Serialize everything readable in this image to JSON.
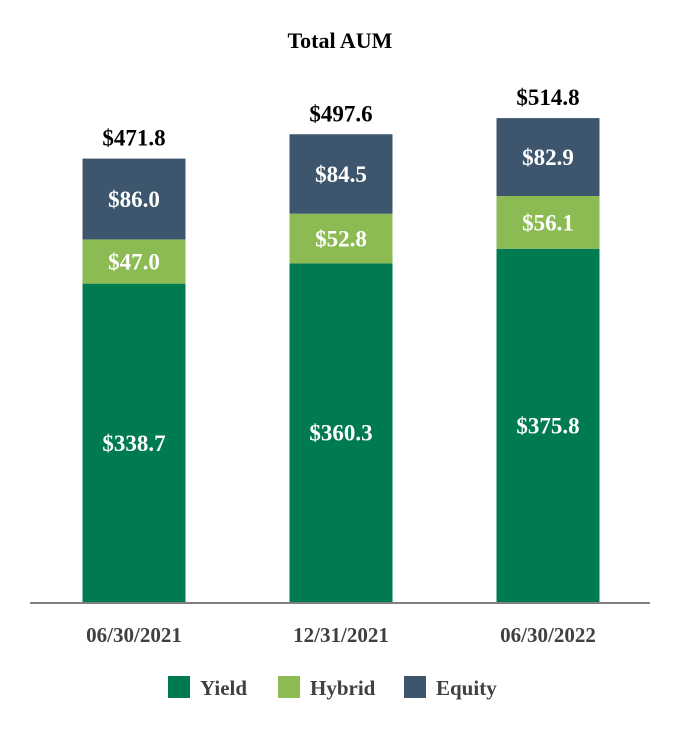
{
  "chart_data": {
    "type": "bar",
    "stacked": true,
    "title": "Total AUM",
    "categories": [
      "06/30/2021",
      "12/31/2021",
      "06/30/2022"
    ],
    "totals": [
      471.8,
      497.6,
      514.8
    ],
    "total_labels": [
      "$471.8",
      "$497.6",
      "$514.8"
    ],
    "series": [
      {
        "name": "Yield",
        "color": "#007a4f",
        "values": [
          338.7,
          360.3,
          375.8
        ],
        "labels": [
          "$338.7",
          "$360.3",
          "$375.8"
        ]
      },
      {
        "name": "Hybrid",
        "color": "#8bbb52",
        "values": [
          47.0,
          52.8,
          56.1
        ],
        "labels": [
          "$47.0",
          "$52.8",
          "$56.1"
        ]
      },
      {
        "name": "Equity",
        "color": "#3d566e",
        "values": [
          86.0,
          84.5,
          82.9
        ],
        "labels": [
          "$86.0",
          "$84.5",
          "$82.9"
        ]
      }
    ],
    "ylim": [
      0,
      560
    ],
    "grid": false,
    "legend": "bottom",
    "xlabel": "",
    "ylabel": ""
  }
}
